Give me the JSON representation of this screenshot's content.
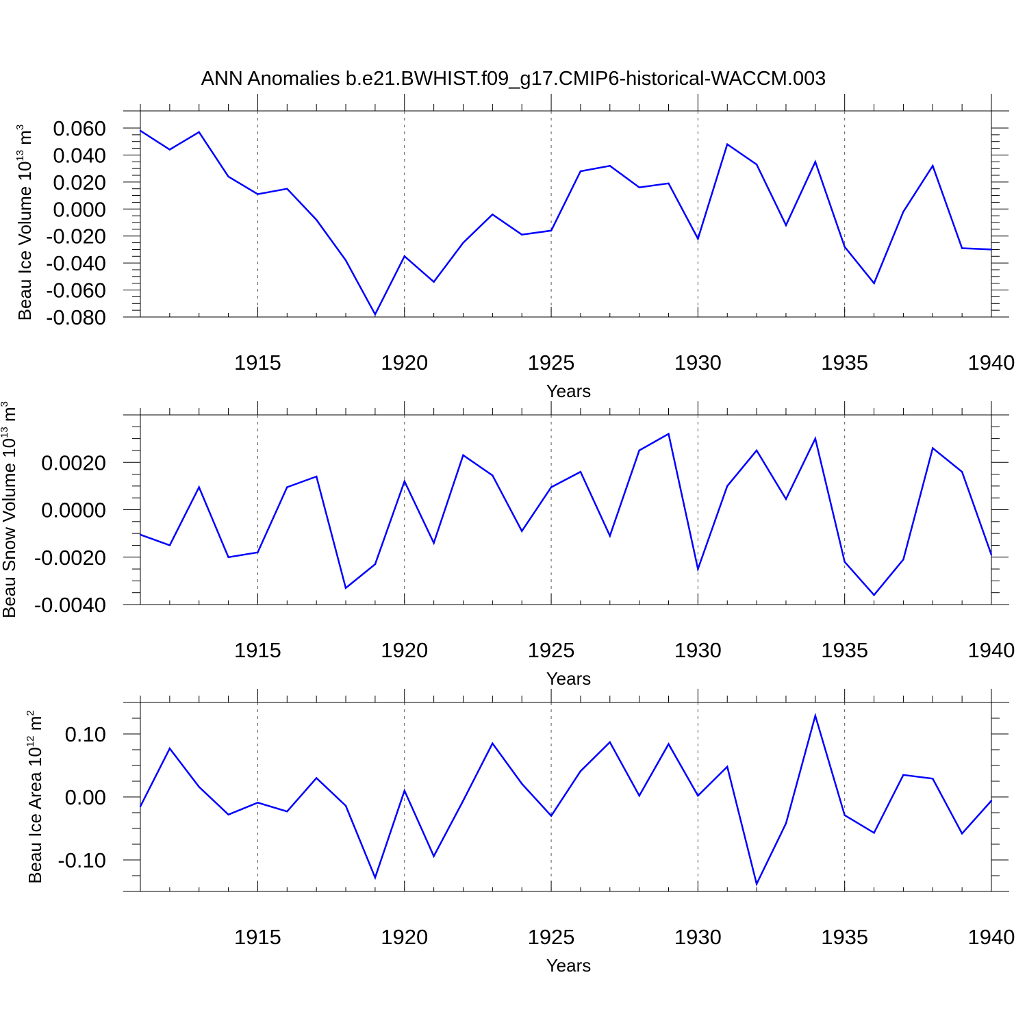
{
  "figure": {
    "title": "ANN Anomalies b.e21.BWHIST.f09_g17.CMIP6-historical-WACCM.003"
  },
  "chart_data": [
    {
      "type": "line",
      "xlabel": "Years",
      "ylabel": {
        "prefix": "Beau Ice Volume 10",
        "exponent": "13",
        "unit": " m",
        "unit_exponent": "3"
      },
      "xlim": [
        1911,
        1940
      ],
      "ylim": [
        -0.08,
        0.06
      ],
      "x_ticks": [
        1915,
        1920,
        1925,
        1930,
        1935,
        1940
      ],
      "y_ticks": [
        -0.08,
        -0.06,
        -0.04,
        -0.02,
        0.0,
        0.02,
        0.04,
        0.06
      ],
      "y_tick_labels": [
        "-0.080",
        "-0.060",
        "-0.040",
        "-0.020",
        "0.000",
        "0.020",
        "0.040",
        "0.060"
      ],
      "y_minor_step": 0.005,
      "x_minor_step": 1,
      "grid": "dashed vertical lines at major x ticks",
      "line_color": "#0000ff",
      "x": [
        1911,
        1912,
        1913,
        1914,
        1915,
        1916,
        1917,
        1918,
        1919,
        1920,
        1921,
        1922,
        1923,
        1924,
        1925,
        1926,
        1927,
        1928,
        1929,
        1930,
        1931,
        1932,
        1933,
        1934,
        1935,
        1936,
        1937,
        1938,
        1939,
        1940
      ],
      "values": [
        0.058,
        0.044,
        0.057,
        0.024,
        0.011,
        0.015,
        -0.008,
        -0.038,
        -0.078,
        -0.035,
        -0.054,
        -0.025,
        -0.004,
        -0.019,
        -0.016,
        0.028,
        0.032,
        0.016,
        0.019,
        -0.022,
        0.048,
        0.033,
        -0.012,
        0.035,
        -0.028,
        -0.055,
        -0.002,
        0.032,
        -0.029,
        -0.03
      ]
    },
    {
      "type": "line",
      "xlabel": "Years",
      "ylabel": {
        "prefix": "Beau Snow Volume 10",
        "exponent": "13",
        "unit": " m",
        "unit_exponent": "3"
      },
      "xlim": [
        1911,
        1940
      ],
      "ylim": [
        -0.004,
        0.004
      ],
      "x_ticks": [
        1915,
        1920,
        1925,
        1930,
        1935,
        1940
      ],
      "y_ticks": [
        -0.004,
        -0.002,
        0.0,
        0.002
      ],
      "y_tick_labels": [
        "-0.0040",
        "-0.0020",
        "0.0000",
        "0.0020"
      ],
      "y_minor_step": 0.0005,
      "x_minor_step": 1,
      "grid": "dashed vertical lines at major x ticks",
      "line_color": "#0000ff",
      "x": [
        1911,
        1912,
        1913,
        1914,
        1915,
        1916,
        1917,
        1918,
        1919,
        1920,
        1921,
        1922,
        1923,
        1924,
        1925,
        1926,
        1927,
        1928,
        1929,
        1930,
        1931,
        1932,
        1933,
        1934,
        1935,
        1936,
        1937,
        1938,
        1939,
        1940
      ],
      "values": [
        -0.00105,
        -0.0015,
        0.00095,
        -0.002,
        -0.0018,
        0.00095,
        0.0014,
        -0.0033,
        -0.0023,
        0.0012,
        -0.0014,
        0.0023,
        0.00145,
        -0.0009,
        0.00095,
        0.0016,
        -0.0011,
        0.0025,
        0.0032,
        -0.0025,
        0.001,
        0.0025,
        0.00045,
        0.003,
        -0.0022,
        -0.0036,
        -0.0021,
        0.0026,
        0.0016,
        -0.0019
      ]
    },
    {
      "type": "line",
      "xlabel": "Years",
      "ylabel": {
        "prefix": "Beau Ice Area 10",
        "exponent": "12",
        "unit": " m",
        "unit_exponent": "2"
      },
      "xlim": [
        1911,
        1940
      ],
      "ylim": [
        -0.15,
        0.15
      ],
      "x_ticks": [
        1915,
        1920,
        1925,
        1930,
        1935,
        1940
      ],
      "y_ticks": [
        -0.1,
        0.0,
        0.1
      ],
      "y_tick_labels": [
        "-0.10",
        "0.00",
        "0.10"
      ],
      "y_minor_step": 0.025,
      "x_minor_step": 1,
      "grid": "dashed vertical lines at major x ticks",
      "line_color": "#0000ff",
      "x": [
        1911,
        1912,
        1913,
        1914,
        1915,
        1916,
        1917,
        1918,
        1919,
        1920,
        1921,
        1922,
        1923,
        1924,
        1925,
        1926,
        1927,
        1928,
        1929,
        1930,
        1931,
        1932,
        1933,
        1934,
        1935,
        1936,
        1937,
        1938,
        1939,
        1940
      ],
      "values": [
        -0.015,
        0.077,
        0.016,
        -0.028,
        -0.009,
        -0.023,
        0.03,
        -0.014,
        -0.128,
        0.01,
        -0.094,
        -0.006,
        0.085,
        0.021,
        -0.03,
        0.041,
        0.087,
        0.002,
        0.084,
        0.002,
        0.048,
        -0.138,
        -0.042,
        0.129,
        -0.029,
        -0.057,
        0.035,
        0.029,
        -0.058,
        -0.006
      ]
    }
  ]
}
